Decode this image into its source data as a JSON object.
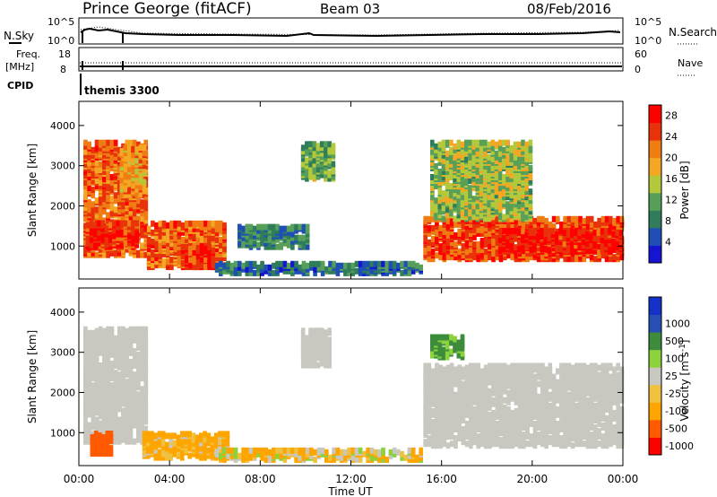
{
  "header": {
    "station": "Prince George (fitACF)",
    "beam": "Beam 03",
    "date": "08/Feb/2016"
  },
  "top_panels": {
    "nsky_label": "N.Sky",
    "nsearch_label": "N.Search",
    "nsky_ticks": [
      "10^5",
      "10^0"
    ],
    "nsearch_ticks": [
      "10^5",
      "10^0"
    ],
    "freq_label_1": "Freq.",
    "freq_label_2": "[MHz]",
    "freq_ticks": [
      "18",
      "8"
    ],
    "nave_label": "Nave",
    "nave_ticks": [
      "60",
      "0"
    ],
    "cpid_label": "CPID",
    "cpid_value": "themis 3300"
  },
  "x_axis": {
    "ticks": [
      "00:00",
      "04:00",
      "08:00",
      "12:00",
      "16:00",
      "20:00",
      "00:00"
    ],
    "label": "Time UT"
  },
  "colors": {
    "power_scale": [
      "#1414d2",
      "#1f4fb4",
      "#2f7d5a",
      "#58a05a",
      "#b4c83c",
      "#f5a623",
      "#f07d14",
      "#e8320a",
      "#ff0000"
    ],
    "velocity_scale": [
      "#ff0000",
      "#ff5a00",
      "#ffa500",
      "#f0c040",
      "#c8c8c0",
      "#8cd23c",
      "#3c8c3c",
      "#2850b4",
      "#1432c8"
    ]
  },
  "chart_data": [
    {
      "type": "heatmap",
      "name": "power",
      "ylabel": "Slant Range [km]",
      "xlabel": "",
      "yticks": [
        1000,
        2000,
        3000,
        4000
      ],
      "ylim": [
        180,
        4600
      ],
      "xlim_hours": [
        0,
        24
      ],
      "colorbar_label": "Power [dB]",
      "colorbar_ticks": [
        4,
        8,
        12,
        16,
        20,
        24,
        28
      ],
      "colorbar_range": [
        0,
        30
      ],
      "regions": [
        {
          "t0": 0.2,
          "t1": 3.0,
          "r0": 700,
          "r1": 3500,
          "level": 24
        },
        {
          "t0": 0.3,
          "t1": 2.5,
          "r0": 900,
          "r1": 1500,
          "level": 28
        },
        {
          "t0": 3.0,
          "t1": 6.5,
          "r0": 400,
          "r1": 1500,
          "level": 24
        },
        {
          "t0": 4.5,
          "t1": 6.0,
          "r0": 400,
          "r1": 900,
          "level": 28
        },
        {
          "t0": 1.8,
          "t1": 2.8,
          "r0": 2200,
          "r1": 3400,
          "level": 20
        },
        {
          "t0": 9.8,
          "t1": 11.2,
          "r0": 2600,
          "r1": 3500,
          "level": 12
        },
        {
          "t0": 15.2,
          "t1": 24.0,
          "r0": 600,
          "r1": 1600,
          "level": 26
        },
        {
          "t0": 18.5,
          "t1": 24.0,
          "r0": 800,
          "r1": 1300,
          "level": 29
        },
        {
          "t0": 15.5,
          "t1": 20.0,
          "r0": 1600,
          "r1": 3500,
          "level": 14
        },
        {
          "t0": 6.0,
          "t1": 15.0,
          "r0": 250,
          "r1": 500,
          "level": 6
        },
        {
          "t0": 7.0,
          "t1": 10.0,
          "r0": 900,
          "r1": 1400,
          "level": 8
        }
      ]
    },
    {
      "type": "heatmap",
      "name": "velocity",
      "ylabel": "Slant Range [km]",
      "xlabel": "Time UT",
      "yticks": [
        1000,
        2000,
        3000,
        4000
      ],
      "ylim": [
        180,
        4600
      ],
      "xlim_hours": [
        0,
        24
      ],
      "colorbar_label": "Velocity [m s^-1]",
      "colorbar_ticks": [
        -1000,
        -500,
        -100,
        -25,
        25,
        100,
        500,
        1000
      ],
      "colorbar_tick_labels": [
        "-1000",
        "-500",
        "-100",
        "-25",
        "25",
        "100",
        "500",
        "1000"
      ],
      "regions": [
        {
          "t0": 0.2,
          "t1": 3.0,
          "r0": 700,
          "r1": 3500,
          "level": 0
        },
        {
          "t0": 0.5,
          "t1": 1.5,
          "r0": 400,
          "r1": 900,
          "level": -500
        },
        {
          "t0": 2.8,
          "t1": 6.5,
          "r0": 300,
          "r1": 900,
          "level": -100
        },
        {
          "t0": 15.2,
          "t1": 24.0,
          "r0": 600,
          "r1": 2600,
          "level": 0
        },
        {
          "t0": 15.5,
          "t1": 17.0,
          "r0": 2800,
          "r1": 3300,
          "level": 150
        },
        {
          "t0": 9.8,
          "t1": 11.0,
          "r0": 2600,
          "r1": 3500,
          "level": 0
        },
        {
          "t0": 6.0,
          "t1": 15.0,
          "r0": 250,
          "r1": 500,
          "level": -50
        }
      ]
    }
  ]
}
